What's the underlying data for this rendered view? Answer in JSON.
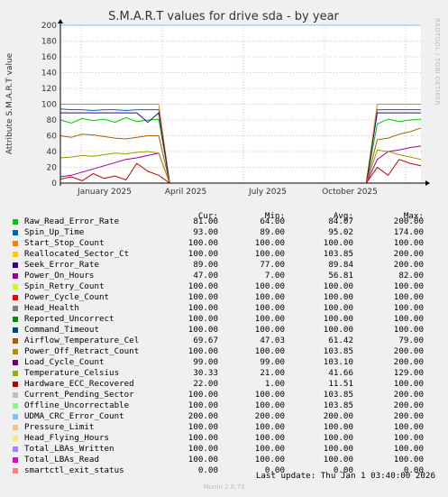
{
  "chart_data": {
    "type": "line",
    "title": "S.M.A.R.T values for drive sda - by year",
    "ylabel": "Attribute S.M.A.R.T value",
    "ylim": [
      0,
      200
    ],
    "yticks": [
      "0",
      "20",
      "40",
      "60",
      "80",
      "100",
      "120",
      "140",
      "160",
      "180",
      "200"
    ],
    "xticks": [
      "January 2025",
      "April 2025",
      "July 2025",
      "October 2025"
    ],
    "grid": true,
    "series": [
      {
        "name": "Raw_Read_Error_Rate",
        "color": "#00cc00",
        "values": [
          80,
          76,
          82,
          79,
          81,
          77,
          83,
          78,
          80,
          81,
          0,
          0,
          0,
          0,
          0,
          0,
          0,
          0,
          0,
          0,
          0,
          0,
          0,
          0,
          0,
          0,
          0,
          0,
          0,
          75,
          81,
          78,
          80,
          81
        ]
      },
      {
        "name": "Spin_Up_Time",
        "color": "#0066b3",
        "values": [
          94,
          93,
          93,
          92,
          93,
          93,
          92,
          93,
          93,
          93,
          0,
          0,
          0,
          0,
          0,
          0,
          0,
          0,
          0,
          0,
          0,
          0,
          0,
          0,
          0,
          0,
          0,
          0,
          0,
          93,
          93,
          93,
          93,
          93
        ]
      },
      {
        "name": "Start_Stop_Count",
        "color": "#ff8000",
        "values": [
          100,
          100,
          100,
          100,
          100,
          100,
          100,
          100,
          100,
          100,
          0,
          0,
          0,
          0,
          0,
          0,
          0,
          0,
          0,
          0,
          0,
          0,
          0,
          0,
          0,
          0,
          0,
          0,
          0,
          100,
          100,
          100,
          100,
          100
        ]
      },
      {
        "name": "Seek_Error_Rate",
        "color": "#330099",
        "values": [
          89,
          89,
          89,
          89,
          89,
          89,
          89,
          89,
          77,
          89,
          0,
          0,
          0,
          0,
          0,
          0,
          0,
          0,
          0,
          0,
          0,
          0,
          0,
          0,
          0,
          0,
          0,
          0,
          0,
          89,
          89,
          89,
          89,
          89
        ]
      },
      {
        "name": "Power_On_Hours",
        "color": "#990099",
        "values": [
          8,
          10,
          14,
          18,
          22,
          26,
          30,
          32,
          35,
          38,
          0,
          0,
          0,
          0,
          0,
          0,
          0,
          0,
          0,
          0,
          0,
          0,
          0,
          0,
          0,
          0,
          0,
          0,
          0,
          30,
          40,
          42,
          45,
          47
        ]
      },
      {
        "name": "Temperature_Celsius",
        "color": "#999900",
        "values": [
          32,
          33,
          35,
          34,
          36,
          38,
          37,
          39,
          40,
          38,
          0,
          0,
          0,
          0,
          0,
          0,
          0,
          0,
          0,
          0,
          0,
          0,
          0,
          0,
          0,
          0,
          0,
          0,
          0,
          42,
          40,
          36,
          33,
          30
        ]
      },
      {
        "name": "Airflow_Temperature_Cel",
        "color": "#b35a00",
        "values": [
          60,
          58,
          62,
          61,
          59,
          57,
          56,
          58,
          60,
          60,
          0,
          0,
          0,
          0,
          0,
          0,
          0,
          0,
          0,
          0,
          0,
          0,
          0,
          0,
          0,
          0,
          0,
          0,
          0,
          55,
          57,
          62,
          65,
          70
        ]
      },
      {
        "name": "Hardware_ECC_Recovered",
        "color": "#cc0000",
        "values": [
          5,
          8,
          3,
          12,
          6,
          9,
          4,
          25,
          15,
          10,
          0,
          0,
          0,
          0,
          0,
          0,
          0,
          0,
          0,
          0,
          0,
          0,
          0,
          0,
          0,
          0,
          0,
          0,
          0,
          20,
          10,
          30,
          25,
          22
        ]
      },
      {
        "name": "UDMA_CRC_Error_Count",
        "color": "#80c0ff",
        "values": [
          200,
          200,
          200,
          200,
          200,
          200,
          200,
          200,
          200,
          200,
          200,
          200,
          200,
          200,
          200,
          200,
          200,
          200,
          200,
          200,
          200,
          200,
          200,
          200,
          200,
          200,
          200,
          200,
          200,
          200,
          200,
          200,
          200,
          200
        ]
      }
    ]
  },
  "legend": {
    "headers": {
      "cur": "Cur:",
      "min": "Min:",
      "avg": "Avg:",
      "max": "Max:"
    },
    "rows": [
      {
        "name": "Raw_Read_Error_Rate",
        "color": "#00cc00",
        "cur": "81.00",
        "min": "64.00",
        "avg": "84.07",
        "max": "200.00"
      },
      {
        "name": "Spin_Up_Time",
        "color": "#0066b3",
        "cur": "93.00",
        "min": "89.00",
        "avg": "95.02",
        "max": "174.00"
      },
      {
        "name": "Start_Stop_Count",
        "color": "#ff8000",
        "cur": "100.00",
        "min": "100.00",
        "avg": "100.00",
        "max": "100.00"
      },
      {
        "name": "Reallocated_Sector_Ct",
        "color": "#ffcc00",
        "cur": "100.00",
        "min": "100.00",
        "avg": "103.85",
        "max": "200.00"
      },
      {
        "name": "Seek_Error_Rate",
        "color": "#330099",
        "cur": "89.00",
        "min": "77.00",
        "avg": "89.84",
        "max": "200.00"
      },
      {
        "name": "Power_On_Hours",
        "color": "#990099",
        "cur": "47.00",
        "min": "7.00",
        "avg": "56.81",
        "max": "82.00"
      },
      {
        "name": "Spin_Retry_Count",
        "color": "#ccff00",
        "cur": "100.00",
        "min": "100.00",
        "avg": "100.00",
        "max": "100.00"
      },
      {
        "name": "Power_Cycle_Count",
        "color": "#ff0000",
        "cur": "100.00",
        "min": "100.00",
        "avg": "100.00",
        "max": "100.00"
      },
      {
        "name": "Head_Health",
        "color": "#808080",
        "cur": "100.00",
        "min": "100.00",
        "avg": "100.00",
        "max": "100.00"
      },
      {
        "name": "Reported_Uncorrect",
        "color": "#008f00",
        "cur": "100.00",
        "min": "100.00",
        "avg": "100.00",
        "max": "100.00"
      },
      {
        "name": "Command_Timeout",
        "color": "#00487d",
        "cur": "100.00",
        "min": "100.00",
        "avg": "100.00",
        "max": "100.00"
      },
      {
        "name": "Airflow_Temperature_Cel",
        "color": "#b35a00",
        "cur": "69.67",
        "min": "47.03",
        "avg": "61.42",
        "max": "79.00"
      },
      {
        "name": "Power_Off_Retract_Count",
        "color": "#b38f00",
        "cur": "100.00",
        "min": "100.00",
        "avg": "103.85",
        "max": "200.00"
      },
      {
        "name": "Load_Cycle_Count",
        "color": "#6b006b",
        "cur": "99.00",
        "min": "99.00",
        "avg": "103.10",
        "max": "200.00"
      },
      {
        "name": "Temperature_Celsius",
        "color": "#8fb300",
        "cur": "30.33",
        "min": "21.00",
        "avg": "41.66",
        "max": "129.00"
      },
      {
        "name": "Hardware_ECC_Recovered",
        "color": "#b30000",
        "cur": "22.00",
        "min": "1.00",
        "avg": "11.51",
        "max": "100.00"
      },
      {
        "name": "Current_Pending_Sector",
        "color": "#bebebe",
        "cur": "100.00",
        "min": "100.00",
        "avg": "103.85",
        "max": "200.00"
      },
      {
        "name": "Offline_Uncorrectable",
        "color": "#80ff80",
        "cur": "100.00",
        "min": "100.00",
        "avg": "103.85",
        "max": "200.00"
      },
      {
        "name": "UDMA_CRC_Error_Count",
        "color": "#80c0ff",
        "cur": "200.00",
        "min": "200.00",
        "avg": "200.00",
        "max": "200.00"
      },
      {
        "name": "Pressure_Limit",
        "color": "#ffc080",
        "cur": "100.00",
        "min": "100.00",
        "avg": "100.00",
        "max": "100.00"
      },
      {
        "name": "Head_Flying_Hours",
        "color": "#ffe680",
        "cur": "100.00",
        "min": "100.00",
        "avg": "100.00",
        "max": "100.00"
      },
      {
        "name": "Total_LBAs_Written",
        "color": "#aa80ff",
        "cur": "100.00",
        "min": "100.00",
        "avg": "100.00",
        "max": "100.00"
      },
      {
        "name": "Total_LBAs_Read",
        "color": "#ee00cc",
        "cur": "100.00",
        "min": "100.00",
        "avg": "100.00",
        "max": "100.00"
      },
      {
        "name": "smartctl_exit_status",
        "color": "#ff8080",
        "cur": "0.00",
        "min": "0.00",
        "avg": "0.00",
        "max": "0.00"
      }
    ]
  },
  "last_update": "Last update: Thu Jan  1 03:40:00 2026",
  "footer": "Munin 2.0.73",
  "side_label": "RRDTOOL / TOBI OETIKER"
}
